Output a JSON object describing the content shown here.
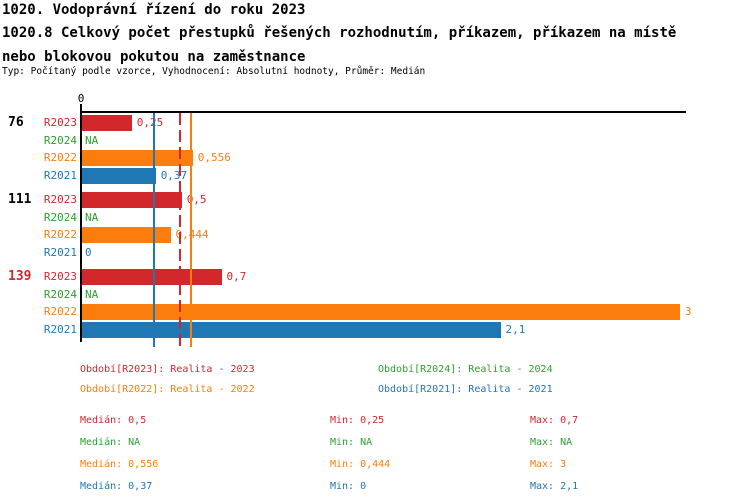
{
  "header": {
    "title_line1": "1020. Vodoprávní řízení do roku 2023",
    "title_line2": "1020.8 Celkový počet přestupků řešených rozhodnutím, příkazem, příkazem na místě",
    "title_line3": "nebo blokovou pokutou na zaměstnance",
    "subtitle": "Typ: Počítaný podle vzorce, Vyhodnocení: Absolutní hodnoty, Průměr: Medián"
  },
  "colors": {
    "R2023": "#d2272b",
    "R2024": "#2ca02c",
    "R2022": "#fb7d0e",
    "R2021": "#1f77b4",
    "axis": "#000000"
  },
  "chart_data": {
    "type": "bar",
    "orientation": "horizontal",
    "axis_zero_label": "0",
    "x_axis_range": [
      0,
      3.04
    ],
    "grid": false,
    "series_order": [
      "R2023",
      "R2024",
      "R2022",
      "R2021"
    ],
    "groups": [
      {
        "label": "76",
        "label_color": "#000000",
        "bars": [
          {
            "series": "R2023",
            "value": 0.25,
            "display": "0,25"
          },
          {
            "series": "R2024",
            "value": null,
            "display": "NA"
          },
          {
            "series": "R2022",
            "value": 0.556,
            "display": "0,556"
          },
          {
            "series": "R2021",
            "value": 0.37,
            "display": "0,37"
          }
        ]
      },
      {
        "label": "111",
        "label_color": "#000000",
        "bars": [
          {
            "series": "R2023",
            "value": 0.5,
            "display": "0,5"
          },
          {
            "series": "R2024",
            "value": null,
            "display": "NA"
          },
          {
            "series": "R2022",
            "value": 0.444,
            "display": "0,444"
          },
          {
            "series": "R2021",
            "value": 0,
            "display": "0"
          }
        ]
      },
      {
        "label": "139",
        "label_color": "#d2272b",
        "bars": [
          {
            "series": "R2023",
            "value": 0.7,
            "display": "0,7"
          },
          {
            "series": "R2024",
            "value": null,
            "display": "NA"
          },
          {
            "series": "R2022",
            "value": 3,
            "display": "3"
          },
          {
            "series": "R2021",
            "value": 2.1,
            "display": "2,1"
          }
        ]
      }
    ],
    "median_lines": [
      {
        "series": "R2021",
        "value": 0.37,
        "style": "solid"
      },
      {
        "series": "R2023",
        "value": 0.5,
        "style": "dashed"
      },
      {
        "series": "R2022",
        "value": 0.556,
        "style": "solid"
      }
    ]
  },
  "legend": [
    {
      "series": "R2023",
      "label": "Období[R2023]: Realita - 2023"
    },
    {
      "series": "R2024",
      "label": "Období[R2024]: Realita - 2024"
    },
    {
      "series": "R2022",
      "label": "Období[R2022]: Realita - 2022"
    },
    {
      "series": "R2021",
      "label": "Období[R2021]: Realita - 2021"
    }
  ],
  "stats": [
    {
      "series": "R2023",
      "median": "Medián: 0,5",
      "min": "Min: 0,25",
      "max": "Max: 0,7"
    },
    {
      "series": "R2024",
      "median": "Medián: NA",
      "min": "Min: NA",
      "max": "Max: NA"
    },
    {
      "series": "R2022",
      "median": "Medián: 0,556",
      "min": "Min: 0,444",
      "max": "Max: 3"
    },
    {
      "series": "R2021",
      "median": "Medián: 0,37",
      "min": "Min: 0",
      "max": "Max: 2,1"
    }
  ]
}
